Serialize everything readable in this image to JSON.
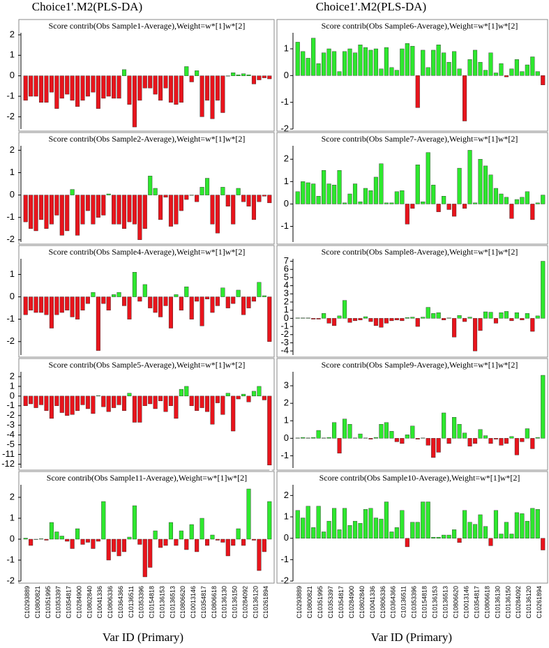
{
  "column_titles": [
    "Choice1'.M2(PLS-DA)",
    "Choice1'.M2(PLS-DA)"
  ],
  "x_axis_labels": [
    "Var ID (Primary)",
    "Var ID (Primary)"
  ],
  "categories": [
    "C10293889",
    null,
    "C10800821",
    null,
    "C10351995",
    null,
    "C10353397",
    null,
    "C10354817",
    null,
    "C10284900",
    null,
    "C10802840",
    null,
    "C10041336",
    null,
    "C10806336",
    null,
    "C10364366",
    null,
    "C10136511",
    null,
    "C10353396",
    null,
    "C10154818",
    null,
    "C10136153",
    null,
    "C10136513",
    null,
    "C10806620",
    null,
    "C10013146",
    null,
    "C10354817",
    null,
    "C10806618",
    null,
    "C10136130",
    null,
    "C10136150",
    null,
    "C10284092",
    null,
    "C10136120",
    null,
    "C10261894",
    null
  ],
  "positive_color": "#2ee82e",
  "negative_color": "#e8141c",
  "chart_data": [
    {
      "type": "bar",
      "title": "Score contrib(Obs Sample1-Average),Weight=w*[1]w*[2]",
      "ylim": [
        -2.6,
        2.1
      ],
      "yticks": [
        2,
        1,
        0,
        -1,
        -2
      ],
      "values": [
        -1.2,
        -1.0,
        -1.0,
        -1.3,
        -1.3,
        -0.8,
        -1.6,
        -1.1,
        -0.9,
        -1.2,
        -1.5,
        -1.2,
        -1.0,
        -0.8,
        -1.6,
        -1.1,
        -1.0,
        -1.1,
        -1.1,
        0.3,
        -1.4,
        -2.5,
        -1.2,
        -0.6,
        -0.6,
        -0.9,
        -1.2,
        -0.6,
        -1.3,
        -1.4,
        -1.3,
        0.45,
        -0.3,
        0.25,
        -2.0,
        -1.2,
        -2.1,
        -1.2,
        -1.8,
        0.0,
        0.15,
        0.05,
        0.1,
        0.05,
        -0.4,
        -0.2,
        -0.1,
        -0.15
      ]
    },
    {
      "type": "bar",
      "title": "Score contrib(Obs Sample2-Average),Weight=w*[1]w*[2]",
      "ylim": [
        -2.1,
        2.2
      ],
      "yticks": [
        2,
        1,
        0,
        -1,
        -2
      ],
      "values": [
        -1.2,
        -1.5,
        -1.6,
        -1.1,
        -1.5,
        -1.3,
        -0.9,
        -1.8,
        -1.6,
        0.25,
        -1.8,
        -1.3,
        -0.7,
        -1.3,
        -1.0,
        -0.9,
        0.05,
        -1.3,
        -1.3,
        -1.5,
        -1.2,
        -1.3,
        -2.0,
        -1.5,
        0.85,
        0.3,
        -1.1,
        -0.1,
        -1.4,
        -1.3,
        -0.7,
        -0.2,
        0.0,
        -0.3,
        0.35,
        0.75,
        -1.3,
        -1.7,
        0.35,
        -0.5,
        -1.3,
        0.3,
        -0.3,
        -0.5,
        -1.1,
        -0.3,
        -0.05,
        -0.35
      ]
    },
    {
      "type": "bar",
      "title": "Score contrib(Obs Sample4-Average),Weight=w*[1]w*[2]",
      "ylim": [
        -2.6,
        1.7
      ],
      "yticks": [
        1,
        0,
        -1,
        -2
      ],
      "values": [
        -0.8,
        -0.6,
        -0.7,
        -0.7,
        -0.8,
        -1.4,
        -0.8,
        -0.7,
        -0.6,
        -0.9,
        -1.0,
        -0.6,
        -0.3,
        0.2,
        -2.4,
        -0.3,
        -0.6,
        0.1,
        0.2,
        -0.4,
        -1.0,
        1.1,
        -0.2,
        0.55,
        -0.5,
        -0.7,
        -0.9,
        -0.4,
        -1.4,
        0.1,
        -0.6,
        0.45,
        -1.0,
        -0.2,
        -1.3,
        -0.1,
        -0.7,
        -0.4,
        0.4,
        -0.5,
        -0.3,
        0.3,
        -0.8,
        -0.5,
        -0.2,
        0.65,
        0.05,
        -2.0
      ]
    },
    {
      "type": "bar",
      "title": "Score contrib(Obs Sample5-Average),Weight=w*[1]w*[2]",
      "ylim": [
        -12.4,
        2.5
      ],
      "axis_break": [
        -5.5,
        -10.5
      ],
      "yticks": [
        2,
        1,
        0,
        -1,
        -2,
        -3,
        -4,
        -5,
        -11,
        -12
      ],
      "values": [
        -1.0,
        -0.8,
        -1.2,
        -0.9,
        -1.5,
        -2.3,
        -1.0,
        -1.7,
        -2.0,
        -1.9,
        -1.5,
        -0.9,
        -1.3,
        -1.8,
        0.05,
        -1.1,
        -1.6,
        -1.2,
        -0.9,
        -1.5,
        0.3,
        -2.7,
        -2.7,
        -1.0,
        -0.8,
        -1.3,
        -0.5,
        -1.6,
        -1.0,
        -2.3,
        0.7,
        1.0,
        -1.0,
        -1.5,
        -1.2,
        -1.6,
        -2.9,
        -0.7,
        -1.9,
        0.3,
        -3.6,
        -0.3,
        0.2,
        -0.6,
        0.5,
        1.0,
        -0.4,
        -12.1
      ]
    },
    {
      "type": "bar",
      "title": "Score contrib(Obs Sample11-Average),Weight=w*[1]w*[2]",
      "ylim": [
        -2.0,
        2.6
      ],
      "yticks": [
        2,
        1,
        0,
        -1,
        -2
      ],
      "values": [
        0.05,
        -0.3,
        0.0,
        0.02,
        -0.05,
        0.8,
        0.35,
        0.15,
        -0.1,
        -0.45,
        0.5,
        -0.25,
        -0.15,
        -0.45,
        -0.1,
        1.8,
        -1.0,
        -0.6,
        -0.8,
        -0.6,
        0.1,
        1.6,
        -0.25,
        -1.8,
        -1.35,
        0.4,
        -0.4,
        -0.3,
        0.8,
        -0.3,
        0.4,
        -0.5,
        0.7,
        -0.6,
        1.0,
        -0.3,
        0.2,
        -0.05,
        -0.15,
        -0.8,
        -0.3,
        0.5,
        -0.3,
        2.4,
        -0.05,
        -1.5,
        -0.6,
        1.8
      ]
    },
    {
      "type": "bar",
      "title": "Score contrib(Obs Sample6-Average),Weight=w*[1]w*[2]",
      "ylim": [
        -2.0,
        1.6
      ],
      "yticks": [
        1,
        0,
        -1,
        -2
      ],
      "values": [
        1.25,
        0.9,
        0.65,
        1.4,
        0.45,
        0.85,
        1.0,
        0.9,
        0.15,
        0.9,
        1.0,
        0.85,
        1.15,
        1.05,
        0.95,
        1.0,
        0.25,
        1.05,
        0.3,
        0.2,
        1.0,
        1.2,
        1.1,
        -1.2,
        0.95,
        0.3,
        0.95,
        1.15,
        0.85,
        0.5,
        0.9,
        0.25,
        -1.7,
        0.6,
        0.95,
        0.5,
        0.2,
        0.85,
        0.1,
        0.45,
        -0.05,
        0.25,
        0.6,
        0.15,
        0.4,
        0.7,
        0.15,
        -0.35
      ]
    },
    {
      "type": "bar",
      "title": "Score contrib(Obs Sample7-Average),Weight=w*[1]w*[2]",
      "ylim": [
        -1.7,
        2.6
      ],
      "yticks": [
        2,
        1,
        0,
        -1
      ],
      "values": [
        0.55,
        1.0,
        0.95,
        0.9,
        0.35,
        1.5,
        0.9,
        0.85,
        1.5,
        0.05,
        0.45,
        0.9,
        0.1,
        0.7,
        0.6,
        1.2,
        1.8,
        0.05,
        0.05,
        0.55,
        0.6,
        -0.9,
        -0.2,
        1.75,
        0.1,
        2.3,
        0.85,
        -0.35,
        0.35,
        -0.25,
        -0.55,
        1.6,
        -0.2,
        2.4,
        0.05,
        2.0,
        1.7,
        1.3,
        0.7,
        0.45,
        0.3,
        -0.65,
        0.2,
        0.3,
        0.55,
        -0.7,
        0.05,
        0.4
      ]
    },
    {
      "type": "bar",
      "title": "Score contrib(Obs Sample8-Average),Weight=w*[1]w*[2]",
      "ylim": [
        -4.5,
        7.3
      ],
      "yticks": [
        7,
        6,
        5,
        4,
        3,
        2,
        1,
        0,
        -1,
        -2,
        -3,
        -4
      ],
      "values": [
        0.05,
        0.05,
        0.05,
        -0.1,
        -0.1,
        0.6,
        -0.6,
        -0.9,
        0.3,
        2.2,
        -0.5,
        -0.3,
        -0.2,
        0.2,
        -0.4,
        -0.9,
        -1.1,
        -0.6,
        -0.3,
        -0.2,
        -0.3,
        0.1,
        0.15,
        -1.0,
        0.15,
        1.35,
        0.6,
        0.7,
        -0.2,
        0.05,
        -2.3,
        0.35,
        -0.4,
        0.15,
        -4.0,
        -1.5,
        0.8,
        0.75,
        -0.6,
        0.7,
        0.85,
        -0.3,
        0.7,
        -0.2,
        0.6,
        -1.6,
        0.3,
        7.0
      ]
    },
    {
      "type": "bar",
      "title": "Score contrib(Obs Sample9-Average),Weight=w*[1]w*[2]",
      "ylim": [
        -1.7,
        3.8
      ],
      "yticks": [
        3,
        2,
        1,
        0,
        -1
      ],
      "values": [
        0.02,
        0.05,
        0.02,
        0.05,
        0.45,
        0.02,
        0.05,
        0.9,
        -0.85,
        1.1,
        0.8,
        0.02,
        0.25,
        0.02,
        -0.05,
        0.05,
        0.8,
        0.9,
        0.4,
        -0.2,
        -0.3,
        0.2,
        0.7,
        -0.05,
        0.02,
        -0.4,
        -1.1,
        -0.8,
        1.45,
        -0.3,
        1.2,
        0.8,
        0.3,
        -0.45,
        -0.3,
        0.5,
        0.15,
        -0.3,
        -0.05,
        -0.4,
        -0.3,
        0.1,
        -0.95,
        -0.2,
        0.55,
        -0.6,
        0.05,
        3.6
      ]
    },
    {
      "type": "bar",
      "title": "Score contrib(Obs Sample10-Average),Weight=w*[1]w*[2]",
      "ylim": [
        -2.0,
        2.5
      ],
      "yticks": [
        2,
        1,
        0,
        -1,
        -2
      ],
      "values": [
        1.3,
        0.95,
        1.5,
        0.5,
        1.5,
        0.3,
        0.8,
        1.4,
        0.4,
        1.4,
        0.6,
        0.8,
        0.7,
        1.35,
        1.4,
        0.95,
        0.9,
        1.7,
        0.3,
        0.5,
        1.3,
        -0.4,
        0.75,
        0.75,
        1.7,
        1.7,
        0.05,
        0.05,
        0.15,
        0.15,
        0.4,
        -0.2,
        1.3,
        0.75,
        0.65,
        1.1,
        0.55,
        -0.35,
        1.3,
        0.2,
        0.75,
        0.2,
        1.2,
        1.15,
        0.8,
        1.4,
        1.35,
        -0.55
      ]
    }
  ]
}
